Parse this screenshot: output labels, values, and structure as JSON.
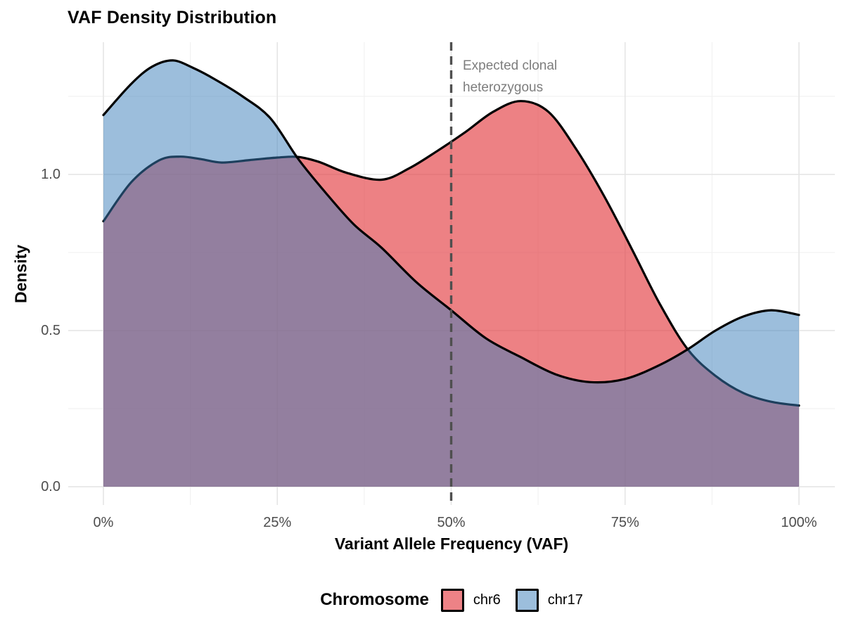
{
  "title": "VAF Density Distribution",
  "annotation": {
    "line1": "Expected clonal",
    "line2": "heterozygous"
  },
  "axes": {
    "x": {
      "label": "Variant Allele Frequency (VAF)",
      "tick_labels": [
        "0%",
        "25%",
        "50%",
        "75%",
        "100%"
      ],
      "tick_values": [
        0,
        25,
        50,
        75,
        100
      ],
      "minor_tick_values": [
        12.5,
        37.5,
        62.5,
        87.5
      ]
    },
    "y": {
      "label": "Density",
      "tick_labels": [
        "0.0",
        "0.5",
        "1.0"
      ],
      "tick_values": [
        0,
        0.5,
        1.0
      ],
      "minor_tick_values": [
        0.25,
        0.75,
        1.25
      ]
    }
  },
  "legend": {
    "title": "Chromosome",
    "items": [
      {
        "label": "chr6",
        "color": "#ED8286",
        "border": "#000000"
      },
      {
        "label": "chr17",
        "color": "#9CBEDC",
        "border": "#000000"
      }
    ]
  },
  "chart_data": {
    "type": "area",
    "subtype": "density",
    "title": "VAF Density Distribution",
    "xlabel": "Variant Allele Frequency (VAF)",
    "ylabel": "Density",
    "xlim": [
      0,
      100
    ],
    "ylim": [
      0,
      1.42
    ],
    "grid": "on",
    "legend_position": "bottom",
    "vline": {
      "x": 50,
      "style": "dashed",
      "color": "#4f4f4f",
      "label": "Expected clonal heterozygous"
    },
    "series": [
      {
        "name": "chr6",
        "fill": "rgba(227,62,66,0.65)",
        "fill_flat": "#ED8286",
        "stroke": "#000000",
        "x": [
          0,
          4,
          8,
          11,
          14,
          17,
          21,
          25,
          28,
          31,
          35,
          40,
          44,
          48,
          52,
          56,
          60,
          64,
          68,
          72,
          76,
          80,
          84,
          88,
          92,
          96,
          100
        ],
        "y": [
          0.85,
          0.975,
          1.045,
          1.057,
          1.049,
          1.038,
          1.046,
          1.054,
          1.056,
          1.04,
          1.005,
          0.983,
          1.02,
          1.075,
          1.135,
          1.2,
          1.235,
          1.2,
          1.08,
          0.93,
          0.76,
          0.585,
          0.44,
          0.355,
          0.3,
          0.272,
          0.26
        ]
      },
      {
        "name": "chr17",
        "fill": "rgba(57,125,185,0.5)",
        "fill_flat": "#9CBEDC",
        "stroke": "#000000",
        "x": [
          0,
          4,
          7,
          10,
          13,
          16,
          20,
          24,
          28,
          32,
          36,
          40,
          45,
          50,
          55,
          60,
          65,
          70,
          75,
          80,
          84,
          88,
          92,
          96,
          100
        ],
        "y": [
          1.19,
          1.29,
          1.345,
          1.365,
          1.34,
          1.305,
          1.25,
          1.18,
          1.05,
          0.94,
          0.84,
          0.765,
          0.655,
          0.565,
          0.475,
          0.415,
          0.36,
          0.335,
          0.345,
          0.39,
          0.44,
          0.5,
          0.545,
          0.565,
          0.55
        ]
      }
    ],
    "grid_colors": {
      "major": "#e4e4e4",
      "minor": "#f2f2f2"
    }
  }
}
